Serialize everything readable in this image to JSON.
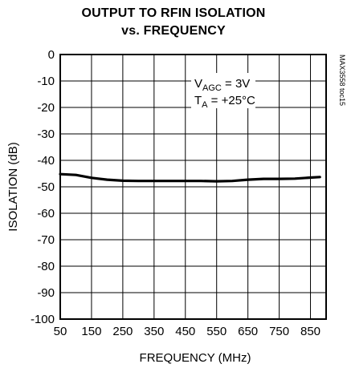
{
  "chart_data": {
    "type": "line",
    "title_line1": "OUTPUT TO RFIN ISOLATION",
    "title_line2": "vs. FREQUENCY",
    "xlabel": "FREQUENCY (MHz)",
    "ylabel": "ISOLATION (dB)",
    "xlim": [
      50,
      900
    ],
    "ylim": [
      -100,
      0
    ],
    "x_ticks": [
      50,
      150,
      250,
      350,
      450,
      550,
      650,
      750,
      850
    ],
    "y_ticks": [
      0,
      -10,
      -20,
      -30,
      -40,
      -50,
      -60,
      -70,
      -80,
      -90,
      -100
    ],
    "grid": true,
    "annotation": {
      "line1_main": "V",
      "line1_sub": "AGC",
      "line1_rest": " = 3V",
      "line2_main": "T",
      "line2_sub": "A",
      "line2_rest": " = +25°C"
    },
    "figure_id": "MAX3558 toc15",
    "series": [
      {
        "x": [
          50,
          100,
          150,
          200,
          250,
          300,
          350,
          400,
          450,
          500,
          550,
          600,
          650,
          700,
          750,
          800,
          850,
          880
        ],
        "y": [
          -45.2,
          -45.5,
          -46.6,
          -47.3,
          -47.7,
          -47.8,
          -47.8,
          -47.8,
          -47.8,
          -47.8,
          -47.9,
          -47.8,
          -47.3,
          -47.0,
          -47.0,
          -46.9,
          -46.5,
          -46.3
        ]
      }
    ]
  }
}
